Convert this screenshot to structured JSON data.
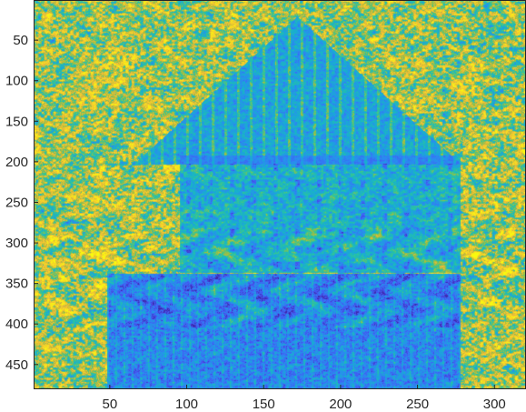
{
  "chart_data": {
    "type": "heatmap",
    "title": "",
    "xlabel": "",
    "ylabel": "",
    "xlim": [
      0.5,
      320.5
    ],
    "ylim": [
      0.5,
      480.5
    ],
    "x_reversed": false,
    "y_reversed": true,
    "x_ticks": [
      50,
      100,
      150,
      200,
      250,
      300
    ],
    "y_ticks": [
      50,
      100,
      150,
      200,
      250,
      300,
      350,
      400,
      450
    ],
    "colormap": "parula",
    "colormap_stops": [
      "#3e26a8",
      "#4656f3",
      "#2b8af2",
      "#16b0d0",
      "#2dc59a",
      "#a6be3b",
      "#f0b83c",
      "#f8e11f",
      "#f9fb0e"
    ],
    "image_size": {
      "columns": 320,
      "rows": 480
    },
    "grid": false,
    "legend": "none"
  }
}
